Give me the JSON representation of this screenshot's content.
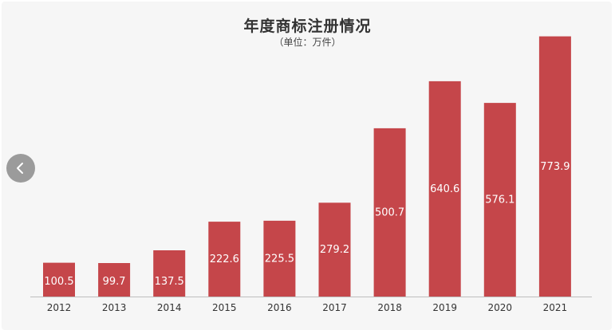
{
  "header": {
    "title": "年度商标注册情况",
    "subtitle": "（单位：万件）"
  },
  "nav": {
    "prev_icon": "chevron-left-icon"
  },
  "colors": {
    "bar": "#c5464a",
    "bar_label": "#ffffff",
    "axis": "#bdbdbd",
    "tick_label": "#333333"
  },
  "chart_data": {
    "type": "bar",
    "title": "年度商标注册情况",
    "subtitle": "（单位：万件）",
    "xlabel": "",
    "ylabel": "",
    "ylim": [
      0,
      800
    ],
    "grid": false,
    "legend": "none",
    "categories": [
      "2012",
      "2013",
      "2014",
      "2015",
      "2016",
      "2017",
      "2018",
      "2019",
      "2020",
      "2021"
    ],
    "values": [
      100.5,
      99.7,
      137.5,
      222.6,
      225.5,
      279.2,
      500.7,
      640.6,
      576.1,
      773.9
    ],
    "data_labels": [
      "100.5",
      "99.7",
      "137.5",
      "222.6",
      "225.5",
      "279.2",
      "500.7",
      "640.6",
      "576.1",
      "773.9"
    ]
  }
}
